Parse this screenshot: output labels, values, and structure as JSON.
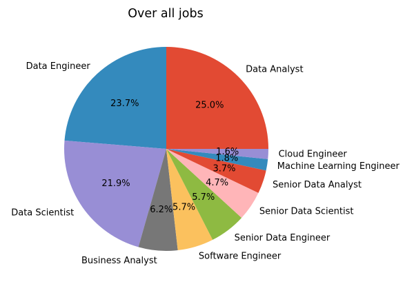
{
  "chart_data": {
    "type": "pie",
    "title": "Over all jobs",
    "start_angle_deg": 0,
    "direction": "counterclockwise",
    "slices": [
      {
        "label": "Data Analyst",
        "value": 25.0,
        "pct_text": "25.0%",
        "color": "#E24A33"
      },
      {
        "label": "Data Engineer",
        "value": 23.7,
        "pct_text": "23.7%",
        "color": "#348ABD"
      },
      {
        "label": "Data Scientist",
        "value": 21.9,
        "pct_text": "21.9%",
        "color": "#988ED5"
      },
      {
        "label": "Business Analyst",
        "value": 6.2,
        "pct_text": "6.2%",
        "color": "#777777"
      },
      {
        "label": "Software Engineer",
        "value": 5.7,
        "pct_text": "5.7%",
        "color": "#FBC15E"
      },
      {
        "label": "Senior Data Engineer",
        "value": 5.7,
        "pct_text": "5.7%",
        "color": "#8EBA42"
      },
      {
        "label": "Senior Data Scientist",
        "value": 4.7,
        "pct_text": "4.7%",
        "color": "#FFB5B8"
      },
      {
        "label": "Senior Data Analyst",
        "value": 3.7,
        "pct_text": "3.7%",
        "color": "#E24A33"
      },
      {
        "label": "Machine Learning Engineer",
        "value": 1.8,
        "pct_text": "1.8%",
        "color": "#348ABD"
      },
      {
        "label": "Cloud Engineer",
        "value": 1.6,
        "pct_text": "1.6%",
        "color": "#988ED5"
      }
    ]
  }
}
